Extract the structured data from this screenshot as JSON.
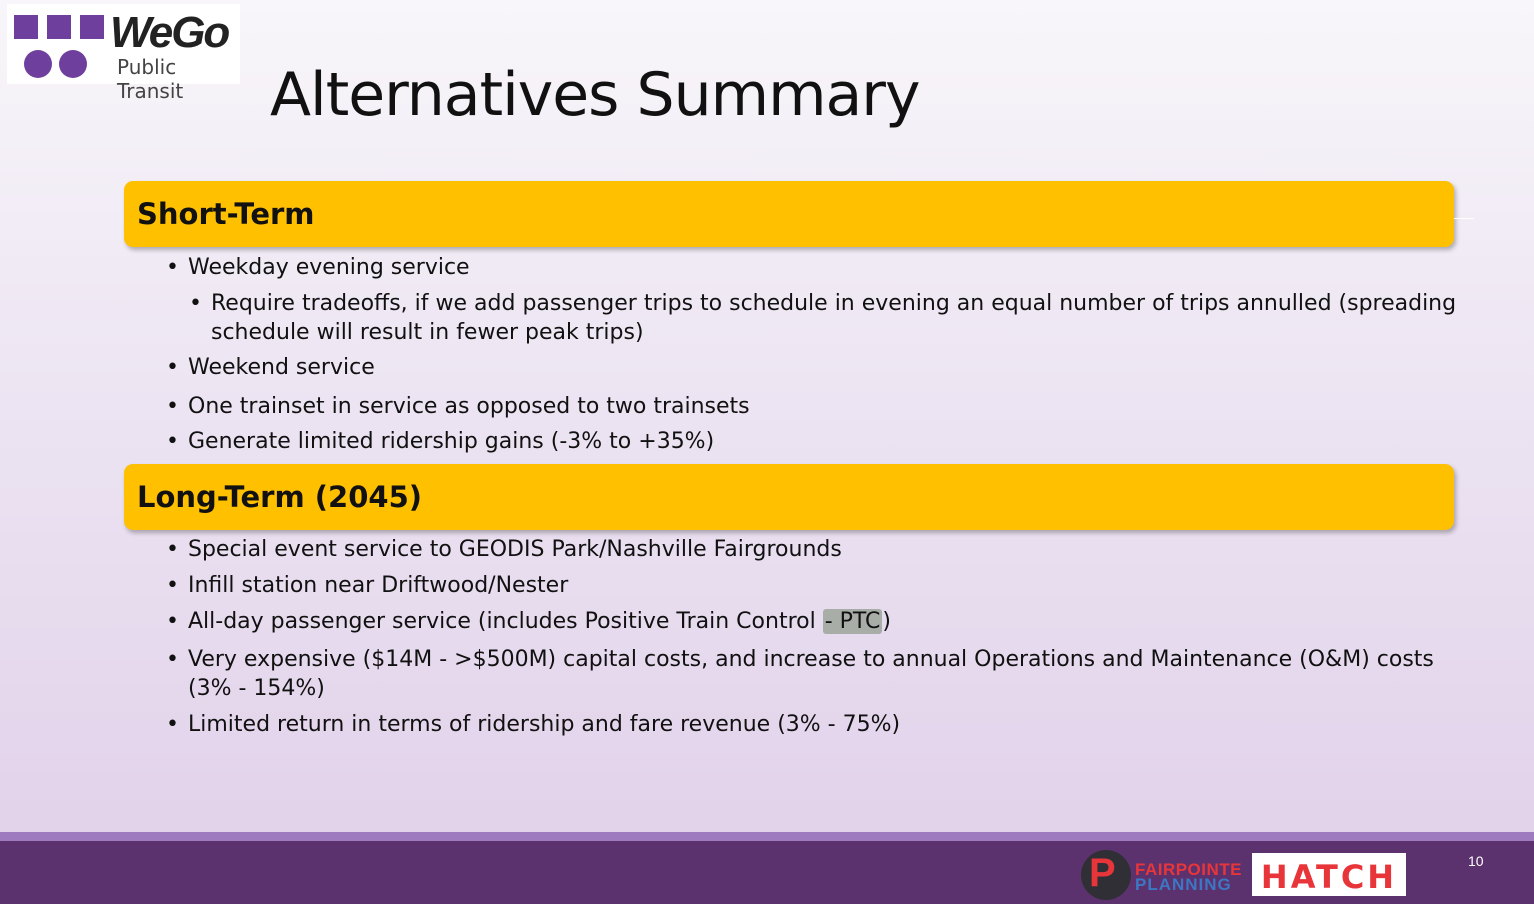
{
  "logo": {
    "brand": "WeGo",
    "tagline": "Public Transit",
    "color": "#6f3f9e"
  },
  "title": "Alternatives Summary",
  "sections": [
    {
      "heading": "Short-Term",
      "items": [
        "Weekday evening service",
        "Require tradeoffs, if we add passenger trips to schedule in evening an equal number of trips annulled (spreading schedule will result in fewer peak trips)",
        "Weekend service",
        "One trainset in service as opposed to two trainsets",
        "Generate limited ridership gains (-3% to +35%)"
      ]
    },
    {
      "heading": "Long-Term (2045)",
      "items": [
        "Special event service to GEODIS Park/Nashville Fairgrounds",
        "Infill station near Driftwood/Nester",
        "All-day passenger service (includes Positive Train Control ",
        "- PTC",
        ")",
        "Very expensive ($14M - >$500M) capital costs, and increase to annual Operations and Maintenance (O&M) costs (3% - 154%)",
        "Limited return in terms of ridership and fare revenue (3% - 75%)"
      ]
    }
  ],
  "footer": {
    "partner1_line1": "FAIRPOINTE",
    "partner1_line2": "PLANNING",
    "partner1_mark": "P",
    "partner2": "HATCH",
    "page_number": "10"
  },
  "colors": {
    "band": "#ffc000",
    "footer": "#5c326e",
    "accent": "#e8353a"
  }
}
